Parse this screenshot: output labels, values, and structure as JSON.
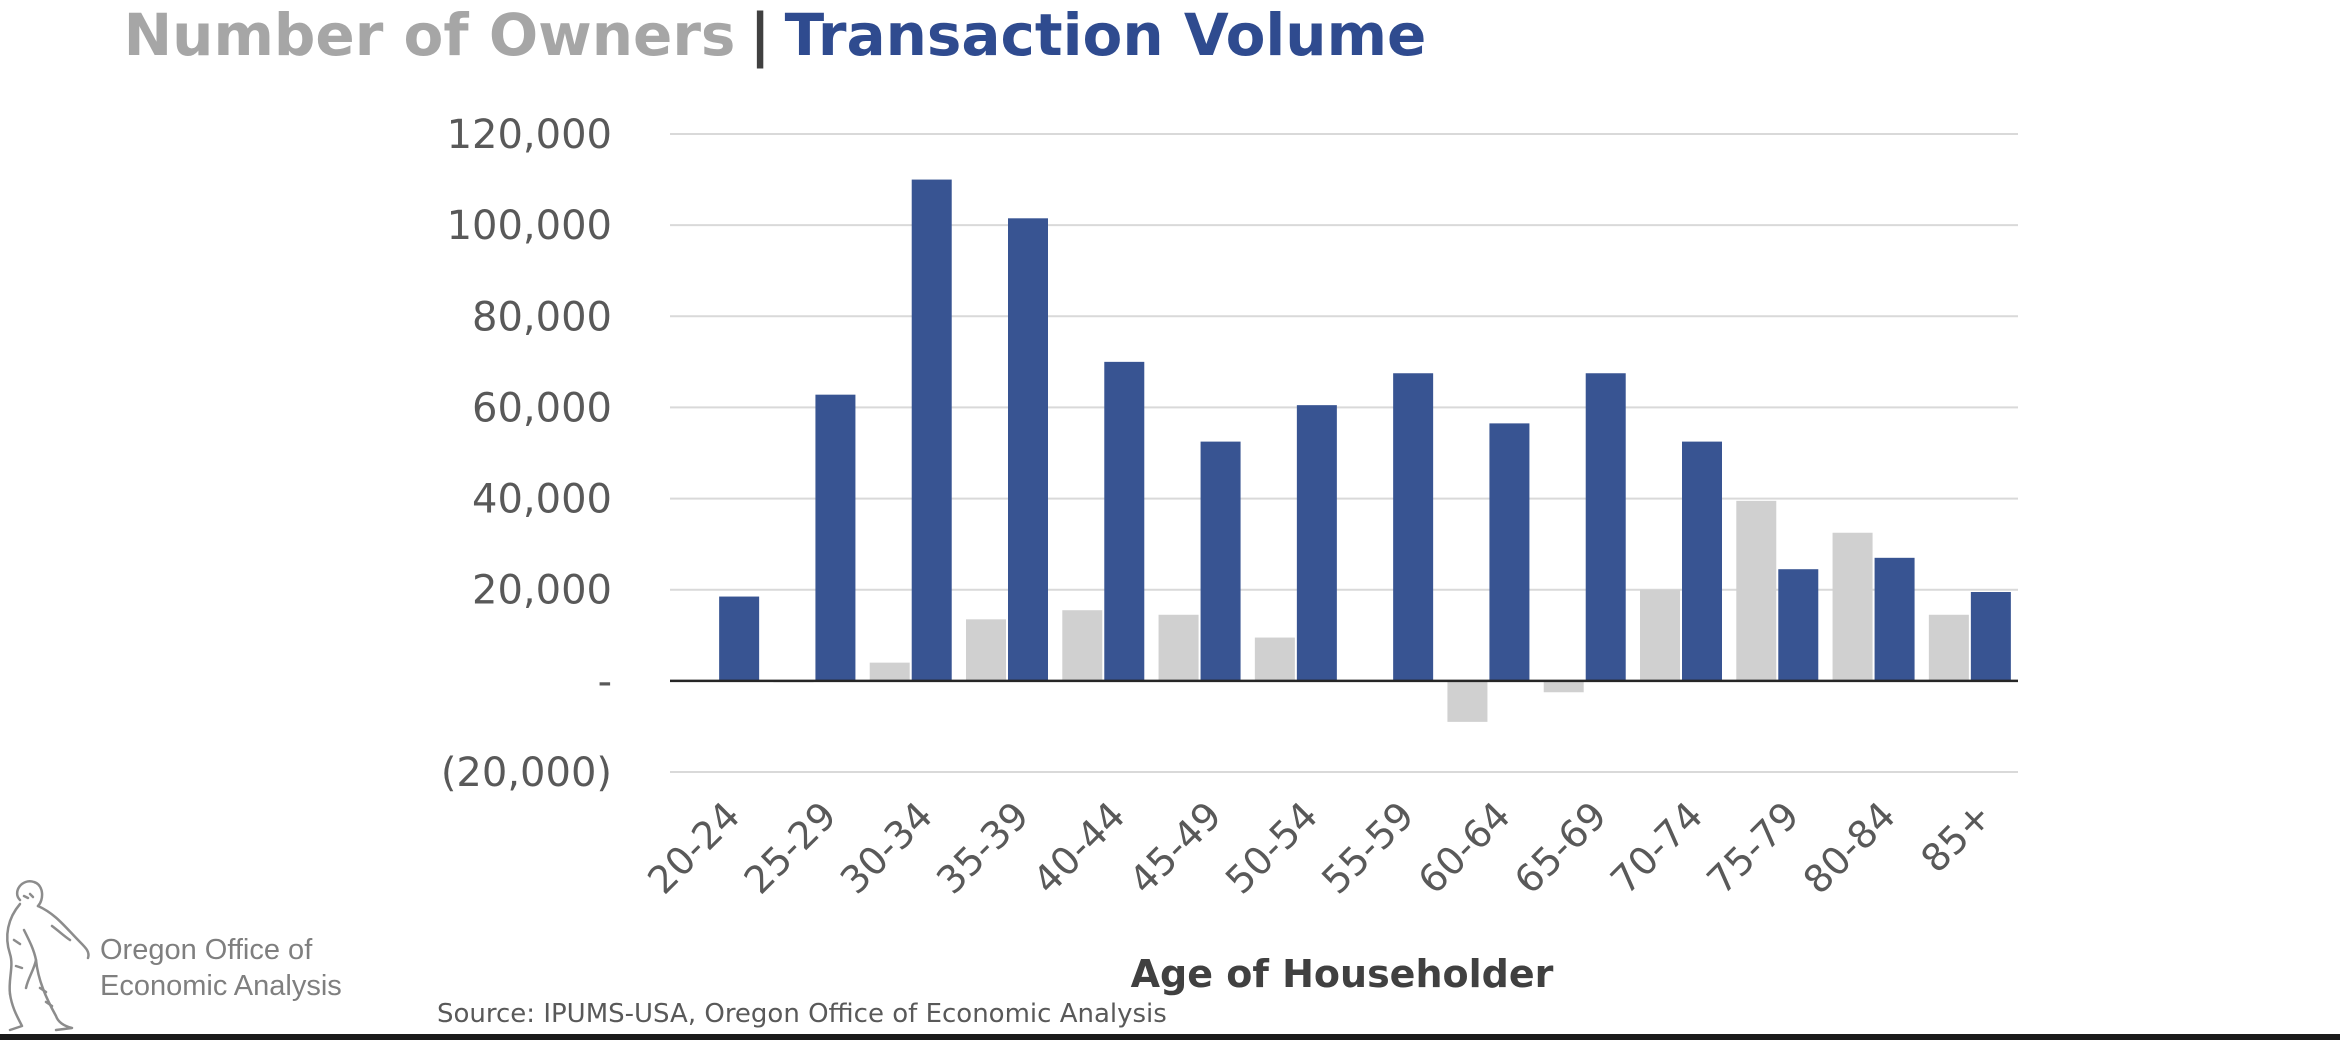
{
  "title": {
    "part1": "Number of Owners",
    "separator": "|",
    "part2": "Transaction Volume"
  },
  "chart_data": {
    "type": "bar",
    "xlabel": "Age of Householder",
    "ylabel": "",
    "ylim": [
      -20000,
      120000
    ],
    "yticks": [
      {
        "value": 120000,
        "label": "120,000"
      },
      {
        "value": 100000,
        "label": "100,000"
      },
      {
        "value": 80000,
        "label": "80,000"
      },
      {
        "value": 60000,
        "label": "60,000"
      },
      {
        "value": 40000,
        "label": "40,000"
      },
      {
        "value": 20000,
        "label": "20,000"
      },
      {
        "value": 0,
        "label": "-"
      },
      {
        "value": -20000,
        "label": "(20,000)"
      }
    ],
    "grid": true,
    "categories": [
      "20-24",
      "25-29",
      "30-34",
      "35-39",
      "40-44",
      "45-49",
      "50-54",
      "55-59",
      "60-64",
      "65-69",
      "70-74",
      "75-79",
      "80-84",
      "85+"
    ],
    "series": [
      {
        "name": "Number of Owners",
        "color": "#d0d0d0",
        "values": [
          0,
          -300,
          4000,
          13500,
          15500,
          14500,
          9500,
          0,
          -9000,
          -2500,
          20000,
          39500,
          32500,
          14500
        ]
      },
      {
        "name": "Transaction Volume",
        "color": "#385492",
        "values": [
          18500,
          62800,
          110000,
          101500,
          70000,
          52500,
          60500,
          67500,
          56500,
          67500,
          52500,
          24500,
          27000,
          19500
        ]
      }
    ]
  },
  "logo": {
    "line1": "Oregon Office of",
    "line2": "Economic Analysis"
  },
  "source": "Source: IPUMS-USA, Oregon Office of Economic Analysis",
  "colors": {
    "owners": "#d0d0d0",
    "volume": "#385492",
    "title_owners": "#a6a6a6",
    "title_volume": "#2f4b8f"
  },
  "icons": [
    "sasquatch-logo-icon"
  ]
}
